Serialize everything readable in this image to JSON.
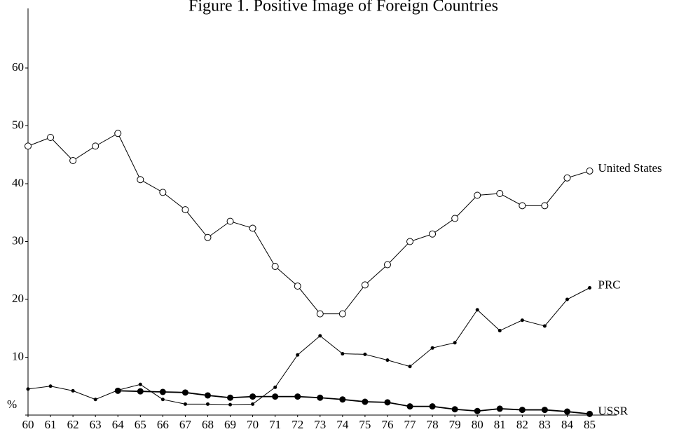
{
  "chart_data": {
    "type": "line",
    "title": "Figure 1. Positive Image of Foreign Countries",
    "x": [
      60,
      61,
      62,
      63,
      64,
      65,
      66,
      67,
      68,
      69,
      70,
      71,
      72,
      73,
      74,
      75,
      76,
      77,
      78,
      79,
      80,
      81,
      82,
      83,
      84,
      85
    ],
    "xlim": [
      60,
      86.2
    ],
    "xticks": [
      60,
      61,
      62,
      63,
      64,
      65,
      66,
      67,
      68,
      69,
      70,
      71,
      72,
      73,
      74,
      75,
      76,
      77,
      78,
      79,
      80,
      81,
      82,
      83,
      84,
      85
    ],
    "ylim": [
      0,
      70
    ],
    "yticks": [
      {
        "value": 0,
        "label": "%"
      },
      10,
      20,
      30,
      40,
      50,
      60
    ],
    "grid": false,
    "series": [
      {
        "name": "United States",
        "color": "#000000",
        "marker": "open",
        "values": [
          46.5,
          48,
          44,
          46.5,
          48.7,
          40.7,
          38.5,
          35.5,
          30.7,
          33.5,
          32.3,
          25.7,
          22.3,
          17.5,
          17.5,
          22.5,
          26,
          30,
          31.3,
          34,
          38,
          38.3,
          36.2,
          36.2,
          41,
          42.2
        ]
      },
      {
        "name": "PRC",
        "color": "#000000",
        "marker": "small",
        "values": [
          4.5,
          5,
          4.2,
          2.7,
          4.3,
          5.3,
          2.7,
          1.9,
          1.9,
          1.8,
          1.9,
          4.8,
          10.4,
          13.7,
          10.6,
          10.5,
          9.5,
          8.4,
          11.6,
          12.5,
          18.2,
          14.6,
          16.4,
          15.4,
          20,
          22
        ]
      },
      {
        "name": "USSR",
        "color": "#000000",
        "marker": "filled",
        "values": [
          null,
          null,
          null,
          null,
          4.2,
          4.1,
          4.0,
          3.9,
          3.4,
          3.0,
          3.2,
          3.2,
          3.2,
          3.0,
          2.7,
          2.3,
          2.2,
          1.5,
          1.5,
          1.0,
          0.7,
          1.1,
          0.9,
          0.9,
          0.6,
          0.2
        ]
      }
    ]
  }
}
